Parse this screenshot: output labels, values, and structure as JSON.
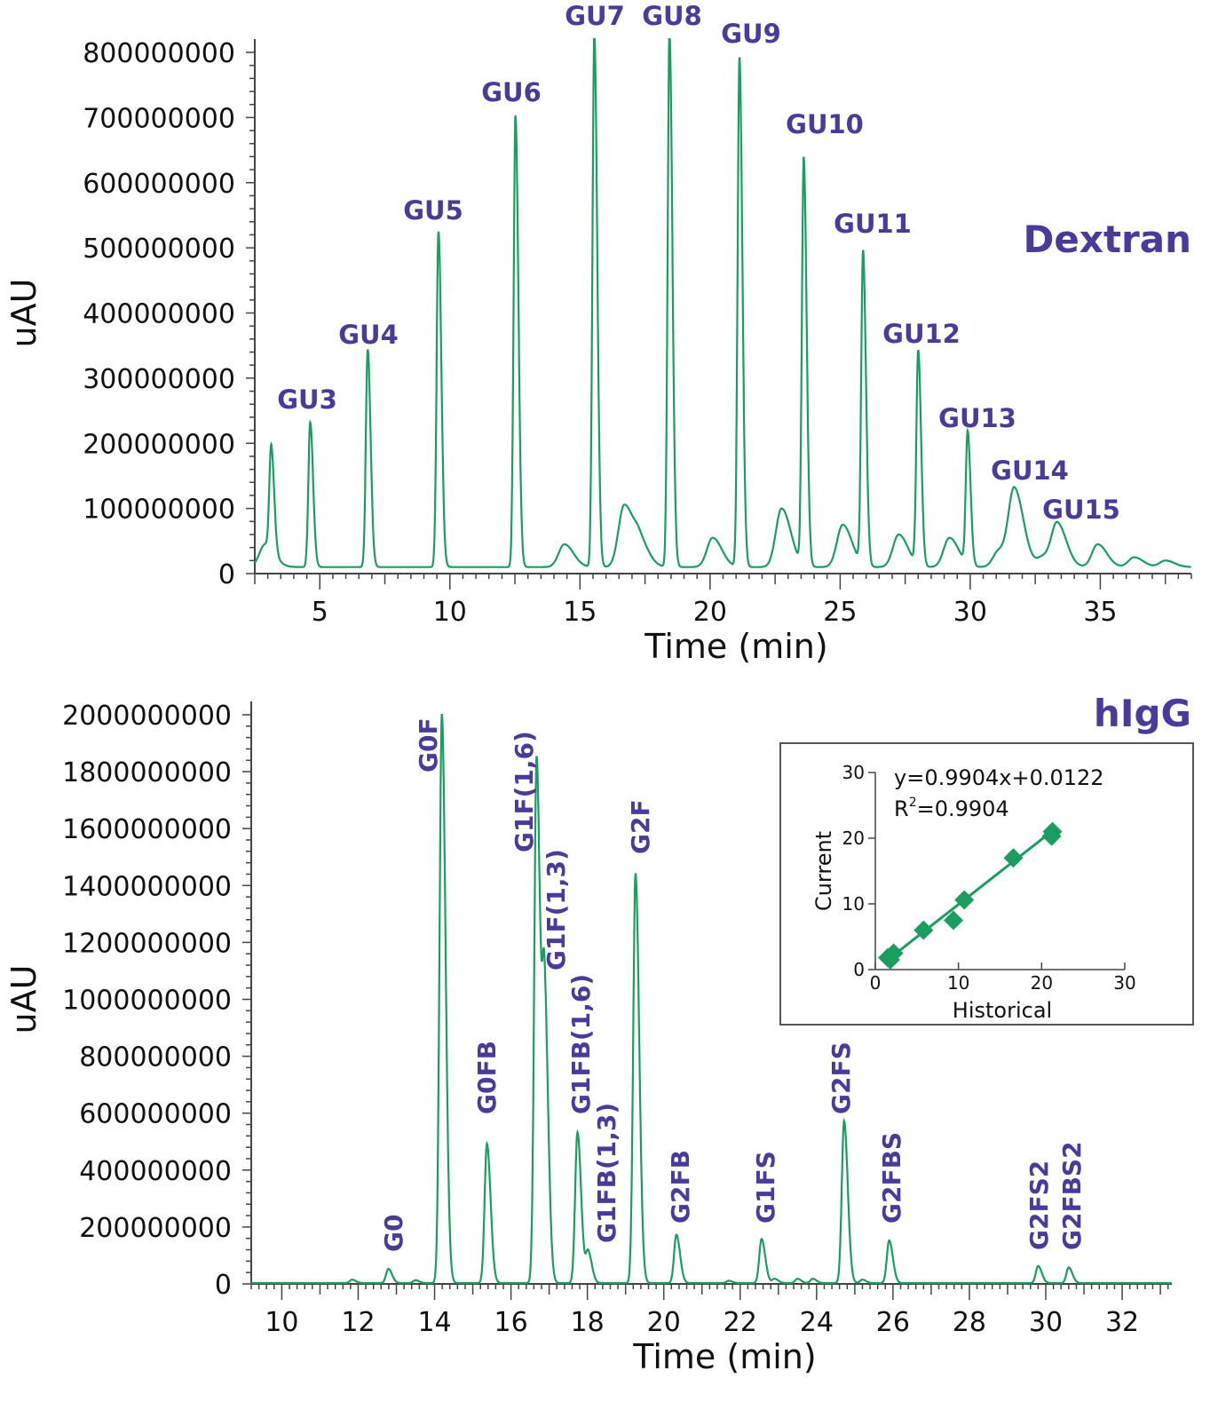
{
  "chart_data": [
    {
      "type": "line",
      "title": "Dextran",
      "xlabel": "Time (min)",
      "ylabel": "uAU",
      "xlim": [
        2.5,
        38.5
      ],
      "ylim": [
        0,
        800000000
      ],
      "xticks": [
        5,
        10,
        15,
        20,
        25,
        30,
        35
      ],
      "yticks": [
        0,
        100000000,
        200000000,
        300000000,
        400000000,
        500000000,
        600000000,
        700000000,
        800000000
      ],
      "color": "#1a9e5f",
      "label_color": "#4b3a9b",
      "baseline": 10000000,
      "peaks": [
        {
          "t": 2.9,
          "h": 35000000
        },
        {
          "t": 3.13,
          "h": 160000000
        },
        {
          "t": 4.63,
          "h": 222000000,
          "label": "GU3"
        },
        {
          "t": 6.84,
          "h": 334000000,
          "label": "GU4"
        },
        {
          "t": 9.56,
          "h": 515000000,
          "label": "GU5"
        },
        {
          "t": 12.52,
          "h": 693000000,
          "label": "GU6"
        },
        {
          "t": 14.4,
          "h": 35000000
        },
        {
          "t": 15.55,
          "h": 822000000,
          "label": "GU7"
        },
        {
          "t": 16.7,
          "h": 95000000
        },
        {
          "t": 17.3,
          "h": 35000000
        },
        {
          "t": 18.44,
          "h": 822000000,
          "label": "GU8"
        },
        {
          "t": 20.1,
          "h": 45000000
        },
        {
          "t": 21.13,
          "h": 782000000,
          "label": "GU9"
        },
        {
          "t": 22.75,
          "h": 90000000
        },
        {
          "t": 23.6,
          "h": 625000000,
          "label": "GU10"
        },
        {
          "t": 25.1,
          "h": 65000000
        },
        {
          "t": 25.88,
          "h": 481000000,
          "label": "GU11"
        },
        {
          "t": 27.25,
          "h": 50000000
        },
        {
          "t": 28.0,
          "h": 328000000,
          "label": "GU12"
        },
        {
          "t": 29.2,
          "h": 45000000
        },
        {
          "t": 29.9,
          "h": 203000000,
          "label": "GU13"
        },
        {
          "t": 31.1,
          "h": 25000000
        },
        {
          "t": 31.7,
          "h": 117000000,
          "label": "GU14"
        },
        {
          "t": 32.8,
          "h": 15000000
        },
        {
          "t": 33.35,
          "h": 65000000,
          "label": "GU15"
        },
        {
          "t": 34.9,
          "h": 35000000
        },
        {
          "t": 36.3,
          "h": 15000000
        },
        {
          "t": 37.5,
          "h": 10000000
        }
      ]
    },
    {
      "type": "line",
      "title": "hIgG",
      "xlabel": "Time (min)",
      "ylabel": "uAU",
      "xlim": [
        9.2,
        33.3
      ],
      "ylim": [
        0,
        2000000000
      ],
      "xticks": [
        10,
        12,
        14,
        16,
        18,
        20,
        22,
        24,
        26,
        28,
        30,
        32
      ],
      "yticks": [
        0,
        200000000,
        400000000,
        600000000,
        800000000,
        1000000000,
        1200000000,
        1400000000,
        1600000000,
        1800000000,
        2000000000
      ],
      "color": "#1a9e5f",
      "label_color": "#4b3a9b",
      "baseline": 3000000,
      "peaks": [
        {
          "t": 11.84,
          "h": 12000000
        },
        {
          "t": 12.79,
          "h": 50000000,
          "label": "G0"
        },
        {
          "t": 13.5,
          "h": 10000000
        },
        {
          "t": 14.19,
          "h": 2000000000,
          "label": "G0F"
        },
        {
          "t": 15.37,
          "h": 490000000,
          "label": "G0FB"
        },
        {
          "t": 16.67,
          "h": 1850000000,
          "label": "G1F(1,6)"
        },
        {
          "t": 16.88,
          "h": 970000000,
          "label": "G1F(1,3)"
        },
        {
          "t": 17.74,
          "h": 530000000,
          "label": "G1FB(1,6)"
        },
        {
          "t": 18.02,
          "h": 110000000,
          "label": "G1FB(1,3)"
        },
        {
          "t": 19.26,
          "h": 1440000000,
          "label": "G2F"
        },
        {
          "t": 20.33,
          "h": 170000000,
          "label": "G2FB"
        },
        {
          "t": 21.7,
          "h": 8000000
        },
        {
          "t": 22.56,
          "h": 155000000,
          "label": "G1FS"
        },
        {
          "t": 22.9,
          "h": 15000000
        },
        {
          "t": 23.5,
          "h": 15000000
        },
        {
          "t": 23.9,
          "h": 15000000
        },
        {
          "t": 24.72,
          "h": 570000000,
          "label": "G2FS"
        },
        {
          "t": 25.2,
          "h": 12000000
        },
        {
          "t": 25.9,
          "h": 150000000,
          "label": "G2FBS"
        },
        {
          "t": 29.8,
          "h": 60000000,
          "label": "G2FS2"
        },
        {
          "t": 30.6,
          "h": 55000000,
          "label": "G2FBS2"
        }
      ]
    },
    {
      "type": "scatter",
      "xlabel": "Historical",
      "ylabel": "Current",
      "xlim": [
        0,
        30
      ],
      "ylim": [
        0,
        30
      ],
      "xticks": [
        0,
        10,
        20,
        30
      ],
      "yticks": [
        0,
        10,
        20,
        30
      ],
      "equation": "y=0.9904x+0.0122",
      "r2_label": "R",
      "r2_sup": "2",
      "r2_value": "=0.9904",
      "fit": {
        "slope": 0.9904,
        "intercept": 0.0122
      },
      "color": "#1a9e5f",
      "points": [
        [
          1.5,
          1.8
        ],
        [
          1.8,
          1.5
        ],
        [
          2.2,
          2.5
        ],
        [
          5.8,
          6.0
        ],
        [
          9.4,
          7.5
        ],
        [
          10.7,
          10.6
        ],
        [
          16.6,
          17.0
        ],
        [
          21.2,
          20.3
        ],
        [
          21.3,
          21.0
        ]
      ]
    }
  ]
}
